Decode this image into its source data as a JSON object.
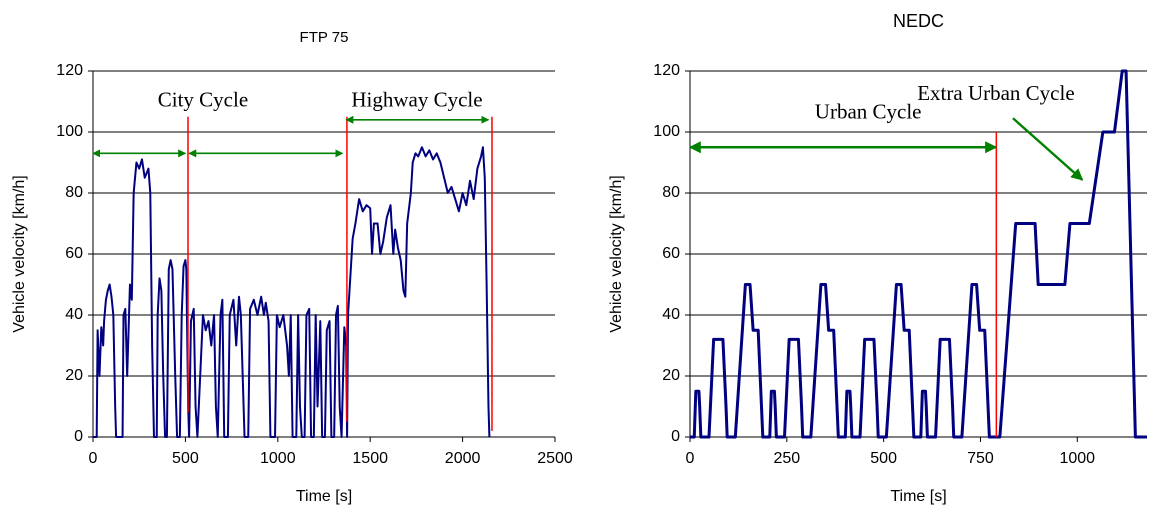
{
  "chart_data": [
    {
      "type": "line",
      "title": "FTP 75",
      "x_label": "Time [s]",
      "y_label": "Vehicle velocity [km/h]",
      "xlim": [
        0,
        2500
      ],
      "ylim": [
        0,
        120
      ],
      "xticks": [
        0,
        500,
        1000,
        1500,
        2000,
        2500
      ],
      "yticks": [
        0,
        20,
        40,
        60,
        80,
        100,
        120
      ],
      "grid": true,
      "x": [
        0,
        20,
        25,
        35,
        45,
        55,
        60,
        70,
        80,
        90,
        100,
        110,
        120,
        125,
        160,
        165,
        175,
        185,
        195,
        200,
        210,
        220,
        235,
        250,
        265,
        280,
        300,
        310,
        320,
        330,
        345,
        350,
        360,
        370,
        380,
        390,
        400,
        410,
        420,
        430,
        445,
        455,
        470,
        480,
        490,
        500,
        505,
        515,
        520,
        530,
        545,
        555,
        565,
        580,
        595,
        610,
        625,
        640,
        655,
        665,
        675,
        690,
        700,
        710,
        730,
        740,
        760,
        775,
        790,
        800,
        810,
        820,
        840,
        850,
        870,
        890,
        910,
        925,
        935,
        950,
        960,
        985,
        995,
        1010,
        1030,
        1050,
        1060,
        1070,
        1080,
        1100,
        1110,
        1120,
        1130,
        1145,
        1155,
        1170,
        1180,
        1195,
        1205,
        1215,
        1230,
        1240,
        1255,
        1265,
        1280,
        1290,
        1305,
        1315,
        1325,
        1335,
        1345,
        1360,
        1370,
        1375,
        1380,
        1395,
        1405,
        1420,
        1440,
        1460,
        1480,
        1500,
        1510,
        1520,
        1540,
        1555,
        1570,
        1590,
        1610,
        1625,
        1635,
        1650,
        1665,
        1680,
        1690,
        1700,
        1720,
        1730,
        1745,
        1760,
        1780,
        1800,
        1820,
        1840,
        1860,
        1880,
        1900,
        1920,
        1940,
        1960,
        1980,
        2000,
        2020,
        2040,
        2060,
        2080,
        2100,
        2110,
        2120,
        2130,
        2140,
        2145
      ],
      "series": [
        {
          "color": "#000080",
          "values": [
            0,
            0,
            35,
            20,
            36,
            30,
            38,
            45,
            48,
            50,
            46,
            40,
            10,
            0,
            0,
            40,
            42,
            20,
            40,
            50,
            45,
            80,
            90,
            88,
            91,
            85,
            88,
            80,
            30,
            0,
            0,
            40,
            52,
            48,
            20,
            0,
            0,
            55,
            58,
            55,
            20,
            0,
            0,
            40,
            56,
            58,
            55,
            10,
            0,
            38,
            42,
            10,
            0,
            20,
            40,
            35,
            38,
            30,
            40,
            10,
            0,
            40,
            45,
            0,
            0,
            40,
            45,
            30,
            46,
            40,
            20,
            0,
            0,
            42,
            45,
            40,
            46,
            40,
            44,
            38,
            0,
            0,
            40,
            36,
            40,
            30,
            20,
            40,
            0,
            0,
            40,
            10,
            0,
            0,
            40,
            42,
            0,
            0,
            40,
            10,
            38,
            0,
            0,
            35,
            38,
            0,
            0,
            40,
            43,
            10,
            0,
            36,
            30,
            0,
            40,
            55,
            65,
            70,
            78,
            74,
            76,
            75,
            60,
            70,
            70,
            60,
            64,
            72,
            76,
            60,
            68,
            62,
            58,
            48,
            46,
            70,
            80,
            90,
            93,
            92,
            95,
            92,
            94,
            91,
            93,
            90,
            85,
            80,
            82,
            78,
            74,
            80,
            76,
            84,
            78,
            88,
            92,
            95,
            85,
            50,
            10,
            0
          ]
        }
      ],
      "annotations": [
        {
          "text": "City Cycle",
          "x": 595,
          "y": 110
        },
        {
          "text": "Highway Cycle",
          "x": 1753,
          "y": 110
        }
      ],
      "arrows": [
        {
          "x": [
            0,
            500
          ],
          "y": [
            93,
            93
          ],
          "heads": "both",
          "color": "#008000"
        },
        {
          "x": [
            520,
            1350
          ],
          "y": [
            93,
            93
          ],
          "heads": "both",
          "color": "#008000"
        },
        {
          "x": [
            1370,
            2140
          ],
          "y": [
            104,
            104
          ],
          "heads": "both",
          "color": "#008000"
        }
      ],
      "vlines": [
        {
          "x": 514,
          "y": [
            8,
            105
          ],
          "color": "#ff0000"
        },
        {
          "x": 1374,
          "y": [
            5,
            105
          ],
          "color": "#ff0000"
        },
        {
          "x": 2159,
          "y": [
            2,
            105
          ],
          "color": "#ff0000"
        }
      ]
    },
    {
      "type": "line",
      "title": "NEDC",
      "x_label": "Time [s]",
      "y_label": "Vehicle velocity [km/h]",
      "xlim": [
        0,
        1180
      ],
      "ylim": [
        0,
        120
      ],
      "xticks": [
        0,
        250,
        500,
        750,
        1000
      ],
      "yticks": [
        0,
        20,
        40,
        60,
        80,
        100,
        120
      ],
      "grid": true,
      "x": [
        0,
        11,
        15,
        23,
        25,
        28,
        49,
        61,
        85,
        93,
        96,
        117,
        143,
        155,
        163,
        176,
        188,
        195,
        206,
        210,
        218,
        220,
        223,
        244,
        256,
        280,
        288,
        291,
        312,
        338,
        350,
        358,
        371,
        383,
        390,
        401,
        405,
        413,
        415,
        418,
        439,
        451,
        475,
        483,
        486,
        507,
        533,
        545,
        553,
        566,
        578,
        585,
        596,
        600,
        608,
        610,
        613,
        634,
        646,
        670,
        678,
        681,
        702,
        728,
        740,
        748,
        761,
        773,
        780,
        800,
        841,
        891,
        899,
        968,
        981,
        1031,
        1066,
        1096,
        1116,
        1126,
        1150,
        1180
      ],
      "series": [
        {
          "color": "#000080",
          "values": [
            0,
            0,
            15,
            15,
            10,
            0,
            0,
            32,
            32,
            10,
            0,
            0,
            50,
            50,
            35,
            35,
            0,
            0,
            0,
            15,
            15,
            10,
            0,
            0,
            32,
            32,
            10,
            0,
            0,
            50,
            50,
            35,
            35,
            0,
            0,
            0,
            15,
            15,
            10,
            0,
            0,
            32,
            32,
            10,
            0,
            0,
            50,
            50,
            35,
            35,
            0,
            0,
            0,
            15,
            15,
            10,
            0,
            0,
            32,
            32,
            10,
            0,
            0,
            50,
            50,
            35,
            35,
            0,
            0,
            0,
            70,
            70,
            50,
            50,
            70,
            70,
            100,
            100,
            120,
            120,
            0,
            0
          ]
        }
      ],
      "annotations": [
        {
          "text": "Urban Cycle",
          "x": 460,
          "y": 106
        },
        {
          "text": "Extra Urban Cycle",
          "x": 790,
          "y": 112
        }
      ],
      "arrows": [
        {
          "x": [
            0,
            790
          ],
          "y": [
            95,
            95
          ],
          "heads": "both",
          "color": "#008000"
        },
        {
          "x": [
            834,
            1013
          ],
          "y": [
            104.5,
            84.3
          ],
          "heads": "end",
          "color": "#008000"
        }
      ],
      "vlines": [
        {
          "x": 791,
          "y": [
            0,
            100
          ],
          "color": "#ff0000"
        }
      ]
    }
  ]
}
